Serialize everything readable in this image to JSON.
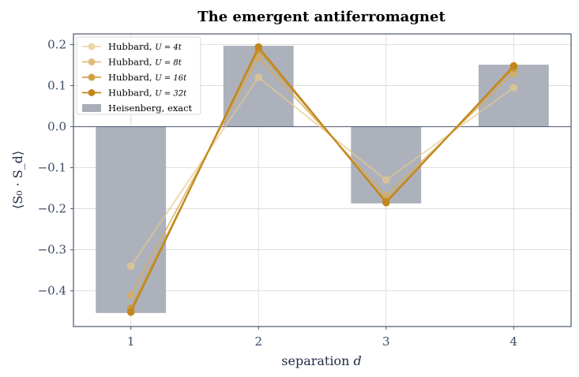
{
  "chart_data": {
    "type": "bar",
    "title": "The emergent antiferromagnet",
    "xlabel_text": "separation ",
    "xlabel_var": "d",
    "ylabel": "⟨S₀ · S_d⟩",
    "categories": [
      1,
      2,
      3,
      4
    ],
    "x_ticks": [
      "1",
      "2",
      "3",
      "4"
    ],
    "y_ticks": [
      {
        "v": 0.2,
        "label": "0.2"
      },
      {
        "v": 0.1,
        "label": "0.1"
      },
      {
        "v": 0.0,
        "label": "0.0"
      },
      {
        "v": -0.1,
        "label": "−0.1"
      },
      {
        "v": -0.2,
        "label": "−0.2"
      },
      {
        "v": -0.3,
        "label": "−0.3"
      },
      {
        "v": -0.4,
        "label": "−0.4"
      }
    ],
    "xlim": [
      0.55,
      4.45
    ],
    "ylim": [
      -0.487,
      0.226
    ],
    "grid": true,
    "legend_position": "upper-left",
    "bars": {
      "name": "Heisenberg, exact",
      "color": "#a9adb8",
      "values": [
        -0.454,
        0.197,
        -0.187,
        0.151
      ]
    },
    "series": [
      {
        "name": "Hubbard, U = 4t",
        "prefix": "Hubbard, ",
        "math": "U = 4t",
        "color": "#e6c98d",
        "opacity": 0.75,
        "values": [
          -0.34,
          0.12,
          -0.13,
          0.095
        ]
      },
      {
        "name": "Hubbard, U = 8t",
        "prefix": "Hubbard, ",
        "math": "U = 8t",
        "color": "#d7ad5c",
        "opacity": 0.8,
        "values": [
          -0.41,
          0.168,
          -0.168,
          0.13
        ]
      },
      {
        "name": "Hubbard, U = 16t",
        "prefix": "Hubbard, ",
        "math": "U = 16t",
        "color": "#cc9833",
        "opacity": 0.9,
        "values": [
          -0.443,
          0.187,
          -0.181,
          0.143
        ]
      },
      {
        "name": "Hubbard, U = 32t",
        "prefix": "Hubbard, ",
        "math": "U = 32t",
        "color": "#c2871c",
        "opacity": 1.0,
        "values": [
          -0.452,
          0.194,
          -0.185,
          0.148
        ]
      }
    ]
  }
}
